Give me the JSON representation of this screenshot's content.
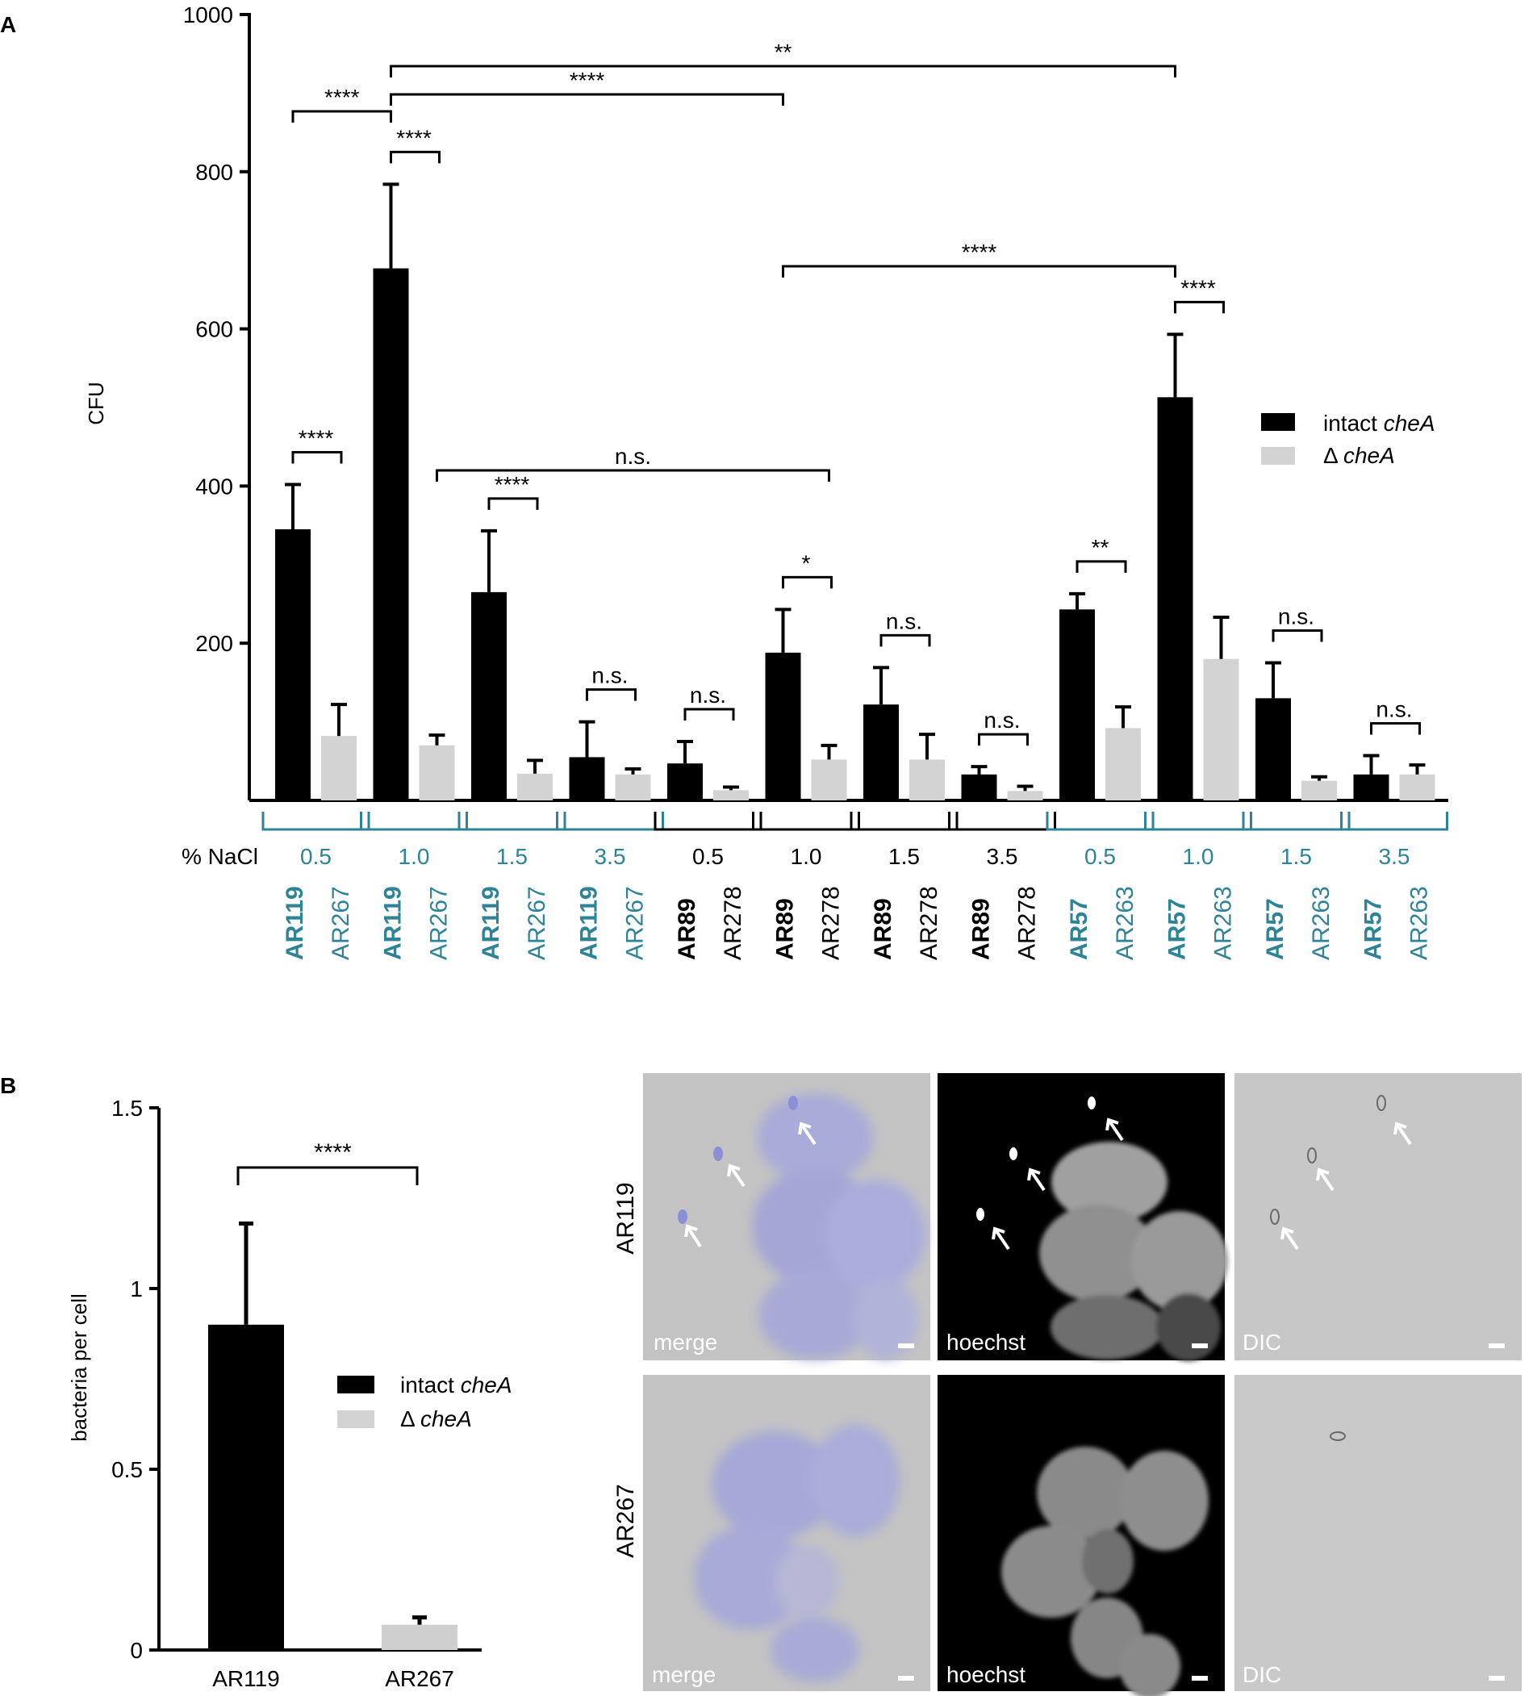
{
  "panels": [
    {
      "label": "A",
      "chart_data": {
        "type": "bar",
        "ylabel": "CFU",
        "ylim": [
          0,
          1000
        ],
        "yticks": [
          200,
          400,
          600,
          800,
          1000
        ],
        "legend": {
          "placement": "right",
          "items": [
            {
              "prefix": "intact ",
              "italic": "cheA",
              "color": "#000000"
            },
            {
              "prefix": "Δ ",
              "italic": "cheA",
              "color": "#d3d3d3"
            }
          ]
        },
        "nacl_label": "% NaCl",
        "groups": [
          {
            "nacl": "0.5",
            "strain": "AR119",
            "mutant": "AR267",
            "intact": 345,
            "delta": 82,
            "intact_err": 57,
            "delta_err": 40,
            "color": "#2e8396",
            "sig": "****"
          },
          {
            "nacl": "1.0",
            "strain": "AR119",
            "mutant": "AR267",
            "intact": 677,
            "delta": 70,
            "intact_err": 107,
            "delta_err": 13,
            "color": "#2e8396",
            "sig": "****"
          },
          {
            "nacl": "1.5",
            "strain": "AR119",
            "mutant": "AR267",
            "intact": 265,
            "delta": 34,
            "intact_err": 78,
            "delta_err": 17,
            "color": "#2e8396",
            "sig": "****"
          },
          {
            "nacl": "3.5",
            "strain": "AR119",
            "mutant": "AR267",
            "intact": 55,
            "delta": 33,
            "intact_err": 45,
            "delta_err": 7,
            "color": "#2e8396",
            "sig": "n.s."
          },
          {
            "nacl": "0.5",
            "strain": "AR89",
            "mutant": "AR278",
            "intact": 47,
            "delta": 13,
            "intact_err": 28,
            "delta_err": 4,
            "color": "#000000",
            "sig": "n.s."
          },
          {
            "nacl": "1.0",
            "strain": "AR89",
            "mutant": "AR278",
            "intact": 188,
            "delta": 52,
            "intact_err": 55,
            "delta_err": 18,
            "color": "#000000",
            "sig": "*"
          },
          {
            "nacl": "1.5",
            "strain": "AR89",
            "mutant": "AR278",
            "intact": 122,
            "delta": 52,
            "intact_err": 47,
            "delta_err": 32,
            "color": "#000000",
            "sig": "n.s."
          },
          {
            "nacl": "3.5",
            "strain": "AR89",
            "mutant": "AR278",
            "intact": 33,
            "delta": 12,
            "intact_err": 10,
            "delta_err": 6,
            "color": "#000000",
            "sig": "n.s."
          },
          {
            "nacl": "0.5",
            "strain": "AR57",
            "mutant": "AR263",
            "intact": 243,
            "delta": 92,
            "intact_err": 20,
            "delta_err": 27,
            "color": "#2e8396",
            "sig": "**"
          },
          {
            "nacl": "1.0",
            "strain": "AR57",
            "mutant": "AR263",
            "intact": 513,
            "delta": 180,
            "intact_err": 80,
            "delta_err": 53,
            "color": "#2e8396",
            "sig": "****"
          },
          {
            "nacl": "1.5",
            "strain": "AR57",
            "mutant": "AR263",
            "intact": 130,
            "delta": 25,
            "intact_err": 45,
            "delta_err": 5,
            "color": "#2e8396",
            "sig": "n.s."
          },
          {
            "nacl": "3.5",
            "strain": "AR57",
            "mutant": "AR263",
            "intact": 33,
            "delta": 33,
            "intact_err": 24,
            "delta_err": 12,
            "color": "#2e8396",
            "sig": "n.s."
          }
        ],
        "long_brackets": [
          {
            "from": "0.intact",
            "to": "1.intact",
            "label": "****"
          },
          {
            "from": "1.intact",
            "to": "5.intact",
            "label": "****"
          },
          {
            "from": "1.intact",
            "to": "9.intact",
            "label": "**"
          },
          {
            "from": "5.intact",
            "to": "9.intact",
            "label": "****"
          },
          {
            "from": "1.delta",
            "to": "5.delta",
            "label": "n.s."
          }
        ]
      }
    },
    {
      "label": "B",
      "chart_data": {
        "type": "bar",
        "ylabel": "bacteria per cell",
        "ylim": [
          0,
          1.5
        ],
        "yticks": [
          "0",
          "0.5",
          "1",
          "1.5"
        ],
        "categories": [
          "AR119",
          "AR267"
        ],
        "values": [
          0.9,
          0.07
        ],
        "errors": [
          0.28,
          0.02
        ],
        "colors": [
          "#000000",
          "#cfcfcf"
        ],
        "significance": "****",
        "legend": {
          "placement": "right",
          "items": [
            {
              "prefix": "intact ",
              "italic": "cheA",
              "color": "#000000"
            },
            {
              "prefix": "Δ ",
              "italic": "cheA",
              "color": "#d3d3d3"
            }
          ]
        }
      },
      "micrographs": {
        "rows": [
          "AR119",
          "AR267"
        ],
        "columns": [
          "merge",
          "hoechst",
          "DIC"
        ]
      }
    }
  ]
}
